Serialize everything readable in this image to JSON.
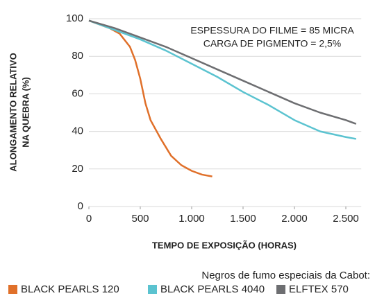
{
  "chart_data": {
    "type": "line",
    "y_label": [
      "ALONGAMENTO RELATIVO",
      "NA QUEBRA (%)"
    ],
    "x_label": "TEMPO DE EXPOSIÇÃO (HORAS)",
    "annotation": [
      "ESPESSURA DO FILME = 85 MICRA",
      "CARGA DE PIGMENTO = 2,5%"
    ],
    "legend_title": "Negros de fumo especiais da Cabot:",
    "xlim": [
      0,
      2650
    ],
    "ylim": [
      0,
      100
    ],
    "xticks": [
      0,
      500,
      {
        "value": 1000,
        "label": "1.000"
      },
      {
        "value": 1500,
        "label": "1.500"
      },
      {
        "value": 2000,
        "label": "2.000"
      },
      {
        "value": 2500,
        "label": "2.500"
      }
    ],
    "yticks": [
      0,
      20,
      40,
      60,
      80,
      100
    ],
    "grid": true,
    "series": [
      {
        "name": "BLACK PEARLS 120",
        "color": "#e0702a",
        "x": [
          0,
          200,
          300,
          400,
          450,
          500,
          550,
          600,
          700,
          800,
          900,
          1000,
          1100,
          1200
        ],
        "values": [
          99,
          95,
          92,
          85,
          78,
          68,
          55,
          46,
          36,
          27,
          22,
          19,
          17,
          16
        ]
      },
      {
        "name": "BLACK PEARLS 4040",
        "color": "#5bc3d0",
        "x": [
          0,
          250,
          500,
          750,
          1000,
          1250,
          1500,
          1750,
          2000,
          2250,
          2500,
          2600
        ],
        "values": [
          99,
          94,
          89,
          83,
          76,
          69,
          61,
          54,
          46,
          40,
          37,
          36
        ]
      },
      {
        "name": "ELFTEX 570",
        "color": "#6d6e71",
        "x": [
          0,
          250,
          500,
          750,
          1000,
          1250,
          1500,
          1750,
          2000,
          2250,
          2500,
          2600
        ],
        "values": [
          99,
          95,
          90,
          85,
          79,
          73,
          67,
          61,
          55,
          50,
          46,
          44
        ]
      }
    ]
  }
}
